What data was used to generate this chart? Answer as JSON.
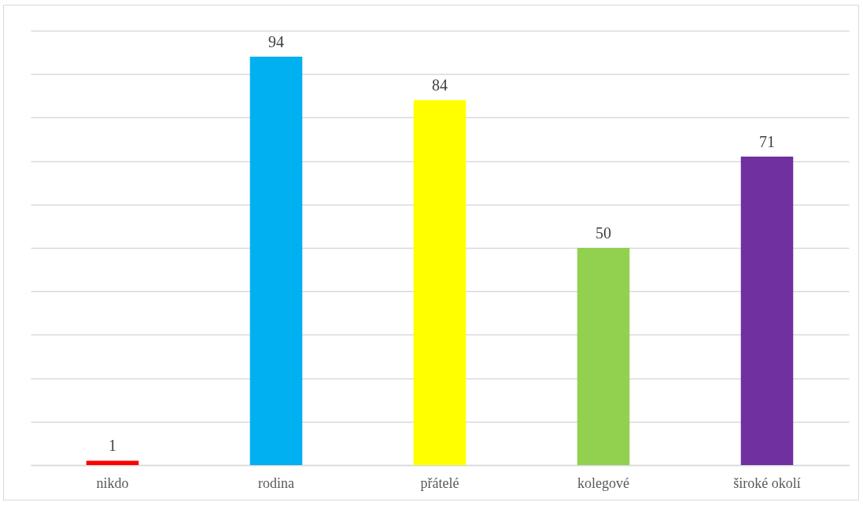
{
  "chart_data": {
    "type": "bar",
    "categories": [
      "nikdo",
      "rodina",
      "přátelé",
      "kolegové",
      "široké okolí"
    ],
    "values": [
      1,
      94,
      84,
      50,
      71
    ],
    "colors": [
      "#ff0000",
      "#00b0f0",
      "#ffff00",
      "#92d050",
      "#7030a0"
    ],
    "ylim": [
      0,
      100
    ],
    "yticks": [
      {
        "value": 0,
        "label": null
      },
      {
        "value": 10,
        "label": null
      },
      {
        "value": 20,
        "label": null
      },
      {
        "value": 30,
        "label": null
      },
      {
        "value": 40,
        "label": null
      },
      {
        "value": 50,
        "label": null
      },
      {
        "value": 60,
        "label": null
      },
      {
        "value": 70,
        "label": null
      },
      {
        "value": 80,
        "label": null
      },
      {
        "value": 90,
        "label": null
      },
      {
        "value": 100,
        "label": null
      }
    ],
    "grid": true,
    "tick_labels": "x",
    "data_labels": true
  }
}
